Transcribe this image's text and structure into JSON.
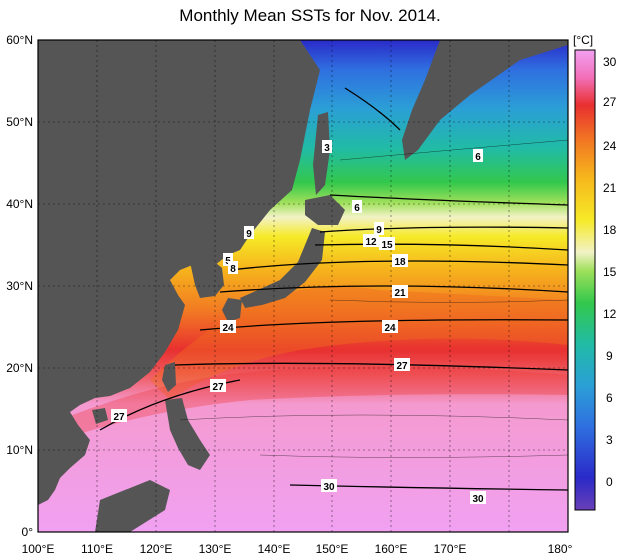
{
  "title": "Monthly Mean SSTs for Nov. 2014.",
  "colorbar": {
    "unit": "[°C]",
    "ticks": [
      "30",
      "27",
      "24",
      "21",
      "18",
      "15",
      "12",
      "9",
      "6",
      "3",
      "0"
    ],
    "colors": [
      "#f1a1f2",
      "#ee3f3a",
      "#f5a21c",
      "#f6e71f",
      "#f0f0c8",
      "#84dd3c",
      "#23c56a",
      "#1ab0c5",
      "#1f7de0",
      "#2230c6"
    ]
  },
  "axes": {
    "lon_labels": [
      "100°E",
      "110°E",
      "120°E",
      "130°E",
      "140°E",
      "150°E",
      "160°E",
      "170°E",
      "180°"
    ],
    "lat_labels": [
      "60°N",
      "50°N",
      "40°N",
      "30°N",
      "20°N",
      "10°N",
      "0°"
    ]
  },
  "contour_labels": [
    "3",
    "6",
    "6",
    "9",
    "9",
    "12",
    "15",
    "18",
    "21",
    "24",
    "24",
    "27",
    "27",
    "27",
    "30",
    "30",
    "5",
    "8"
  ],
  "colors": {
    "land": "#555555",
    "ocean_background": "#f1a1f2"
  }
}
